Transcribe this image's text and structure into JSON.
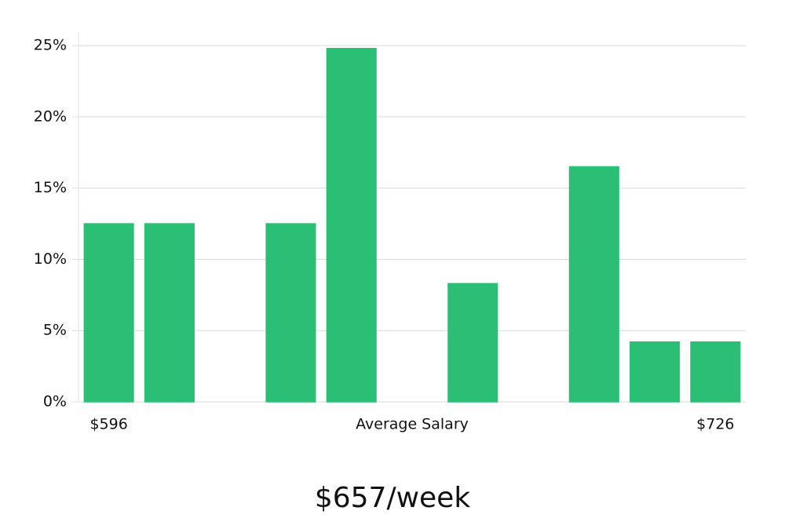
{
  "chart_data": {
    "type": "bar",
    "categories": [
      "$596",
      null,
      null,
      null,
      null,
      null,
      null,
      null,
      null,
      null,
      "$726"
    ],
    "values": [
      12.5,
      12.5,
      0,
      12.5,
      24.8,
      0,
      8.3,
      0,
      16.5,
      4.2,
      4.2
    ],
    "colors": [
      "#2bbf76",
      "#2bbf76",
      "#2bbf76",
      "#2bbf76",
      "#2bbf76",
      "#1c1c5a",
      "#2bbf76",
      "#2bbf76",
      "#2bbf76",
      "#2bbf76",
      "#2bbf76"
    ],
    "x_label": "Average Salary",
    "subtitle": "$657/week",
    "ylim": [
      0,
      26
    ],
    "yticks": [
      {
        "value": 0,
        "label": "0%"
      },
      {
        "value": 5,
        "label": "5%"
      },
      {
        "value": 10,
        "label": "10%"
      },
      {
        "value": 15,
        "label": "15%"
      },
      {
        "value": 20,
        "label": "20%"
      },
      {
        "value": 25,
        "label": "25%"
      }
    ],
    "grid": true
  }
}
